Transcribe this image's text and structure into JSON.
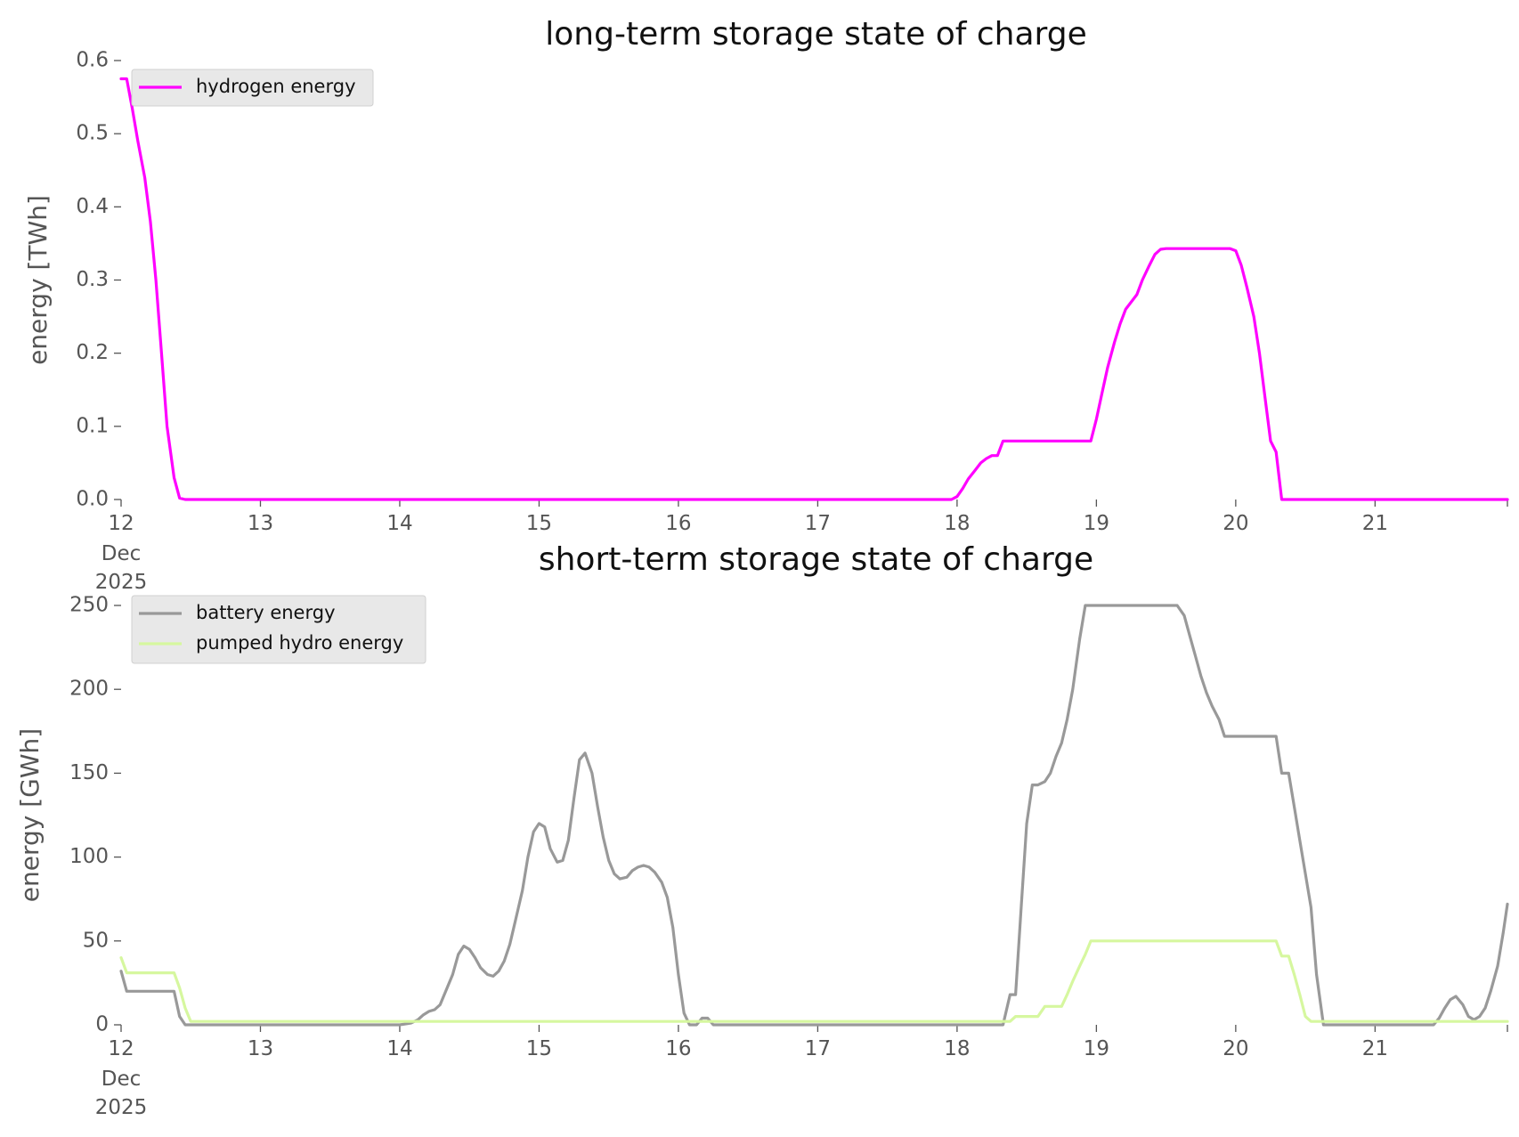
{
  "chart_data": [
    {
      "type": "line",
      "title": "long-term storage state of charge",
      "ylabel": "energy [TWh]",
      "xlabel": "",
      "x_unit": "day of Dec 2025",
      "xlim": [
        12,
        21.95
      ],
      "ylim": [
        0,
        0.6
      ],
      "yticks": [
        "0.0",
        "0.1",
        "0.2",
        "0.3",
        "0.4",
        "0.5",
        "0.6"
      ],
      "ytick_values": [
        0,
        0.1,
        0.2,
        0.3,
        0.4,
        0.5,
        0.6
      ],
      "xticks": [
        "12",
        "13",
        "14",
        "15",
        "16",
        "17",
        "18",
        "19",
        "20",
        "21"
      ],
      "xtick_values": [
        12,
        13,
        14,
        15,
        16,
        17,
        18,
        19,
        20,
        21
      ],
      "xtick_sub": [
        "Dec",
        "2025"
      ],
      "grid": false,
      "legend_position": "upper-left",
      "series": [
        {
          "name": "hydrogen energy",
          "color": "#ff00ff",
          "x": [
            12.0,
            12.04,
            12.08,
            12.12,
            12.17,
            12.21,
            12.25,
            12.29,
            12.33,
            12.38,
            12.42,
            12.46,
            12.5,
            13.0,
            14.0,
            15.0,
            16.0,
            17.0,
            17.96,
            18.0,
            18.04,
            18.08,
            18.13,
            18.17,
            18.21,
            18.25,
            18.29,
            18.33,
            18.38,
            18.42,
            18.5,
            18.6,
            18.7,
            18.8,
            18.9,
            18.96,
            19.0,
            19.04,
            19.08,
            19.13,
            19.17,
            19.21,
            19.25,
            19.29,
            19.33,
            19.38,
            19.42,
            19.46,
            19.5,
            19.54,
            19.58,
            19.62,
            19.7,
            19.8,
            19.9,
            19.96,
            20.0,
            20.04,
            20.08,
            20.13,
            20.17,
            20.21,
            20.25,
            20.29,
            20.33,
            20.35,
            20.38,
            20.5,
            21.0,
            21.95
          ],
          "values": [
            0.575,
            0.575,
            0.535,
            0.49,
            0.44,
            0.38,
            0.3,
            0.2,
            0.1,
            0.03,
            0.002,
            0.0,
            0.0,
            0.0,
            0.0,
            0.0,
            0.0,
            0.0,
            0.0,
            0.004,
            0.015,
            0.028,
            0.04,
            0.05,
            0.056,
            0.06,
            0.06,
            0.08,
            0.08,
            0.08,
            0.08,
            0.08,
            0.08,
            0.08,
            0.08,
            0.08,
            0.11,
            0.145,
            0.18,
            0.215,
            0.24,
            0.26,
            0.27,
            0.28,
            0.3,
            0.32,
            0.335,
            0.342,
            0.343,
            0.343,
            0.343,
            0.343,
            0.343,
            0.343,
            0.343,
            0.343,
            0.34,
            0.32,
            0.29,
            0.25,
            0.2,
            0.14,
            0.08,
            0.065,
            0.0,
            0.0,
            0.0,
            0.0,
            0.0,
            0.0
          ]
        }
      ]
    },
    {
      "type": "line",
      "title": "short-term storage state of charge",
      "ylabel": "energy [GWh]",
      "xlabel": "",
      "x_unit": "day of Dec 2025",
      "xlim": [
        12,
        21.95
      ],
      "ylim": [
        0,
        250
      ],
      "yticks": [
        "0",
        "50",
        "100",
        "150",
        "200",
        "250"
      ],
      "ytick_values": [
        0,
        50,
        100,
        150,
        200,
        250
      ],
      "xticks": [
        "12",
        "13",
        "14",
        "15",
        "16",
        "17",
        "18",
        "19",
        "20",
        "21"
      ],
      "xtick_values": [
        12,
        13,
        14,
        15,
        16,
        17,
        18,
        19,
        20,
        21
      ],
      "xtick_sub": [
        "Dec",
        "2025"
      ],
      "grid": false,
      "legend_position": "upper-left",
      "series": [
        {
          "name": "battery energy",
          "color": "#999999",
          "x": [
            12.0,
            12.04,
            12.38,
            12.42,
            12.46,
            12.5,
            13.0,
            14.0,
            14.08,
            14.13,
            14.17,
            14.21,
            14.25,
            14.29,
            14.33,
            14.38,
            14.42,
            14.46,
            14.5,
            14.54,
            14.58,
            14.63,
            14.67,
            14.71,
            14.75,
            14.79,
            14.83,
            14.88,
            14.92,
            14.96,
            15.0,
            15.04,
            15.08,
            15.13,
            15.17,
            15.21,
            15.25,
            15.29,
            15.33,
            15.38,
            15.42,
            15.46,
            15.5,
            15.54,
            15.58,
            15.63,
            15.67,
            15.71,
            15.75,
            15.79,
            15.83,
            15.88,
            15.92,
            15.96,
            16.0,
            16.04,
            16.08,
            16.13,
            16.17,
            16.21,
            16.25,
            16.29,
            16.33,
            16.38,
            16.42,
            16.46,
            16.5,
            16.54,
            16.58,
            17.0,
            18.0,
            18.33,
            18.38,
            18.42,
            18.46,
            18.5,
            18.54,
            18.58,
            18.63,
            18.67,
            18.71,
            18.75,
            18.79,
            18.83,
            18.88,
            18.92,
            18.96,
            19.0,
            19.5,
            19.58,
            19.63,
            19.67,
            19.71,
            19.75,
            19.79,
            19.83,
            19.88,
            19.92,
            19.96,
            20.0,
            20.29,
            20.33,
            20.38,
            20.42,
            20.46,
            20.5,
            20.54,
            20.58,
            20.63,
            20.67,
            21.0,
            21.42,
            21.46,
            21.5,
            21.54,
            21.58,
            21.63,
            21.67,
            21.71,
            21.75,
            21.79,
            21.83,
            21.88,
            21.92,
            21.95
          ],
          "values": [
            32,
            20,
            20,
            5,
            0,
            0,
            0,
            0,
            1,
            3,
            6,
            8,
            9,
            12,
            20,
            30,
            42,
            47,
            45,
            40,
            34,
            30,
            29,
            32,
            38,
            48,
            62,
            80,
            100,
            115,
            120,
            118,
            105,
            97,
            98,
            110,
            135,
            158,
            162,
            150,
            130,
            112,
            98,
            90,
            87,
            88,
            92,
            94,
            95,
            94,
            91,
            85,
            76,
            58,
            30,
            7,
            0,
            0,
            4,
            4,
            0,
            0,
            0,
            0,
            0,
            0,
            0,
            0,
            0,
            0,
            0,
            0,
            18,
            18,
            70,
            120,
            143,
            143,
            145,
            150,
            160,
            168,
            182,
            200,
            230,
            250,
            250,
            250,
            250,
            250,
            244,
            232,
            220,
            208,
            198,
            190,
            182,
            172,
            172,
            172,
            172,
            150,
            150,
            130,
            110,
            90,
            70,
            30,
            0,
            0,
            0,
            0,
            4,
            10,
            15,
            17,
            12,
            5,
            3,
            5,
            10,
            20,
            35,
            55,
            72
          ],
          "x_alias": null
        },
        {
          "name": "pumped hydro energy",
          "color": "#d6f79f",
          "x": [
            12.0,
            12.04,
            12.38,
            12.42,
            12.46,
            12.5,
            13.0,
            18.0,
            18.38,
            18.42,
            18.58,
            18.63,
            18.75,
            18.79,
            18.83,
            18.88,
            18.92,
            18.96,
            19.0,
            20.29,
            20.33,
            20.38,
            20.42,
            20.46,
            20.5,
            20.54,
            20.58,
            21.0,
            21.95
          ],
          "values": [
            40,
            31,
            31,
            22,
            10,
            2,
            2,
            2,
            2,
            5,
            5,
            11,
            11,
            18,
            26,
            35,
            42,
            50,
            50,
            50,
            41,
            41,
            30,
            18,
            5,
            2,
            2,
            2,
            2
          ]
        }
      ]
    }
  ]
}
